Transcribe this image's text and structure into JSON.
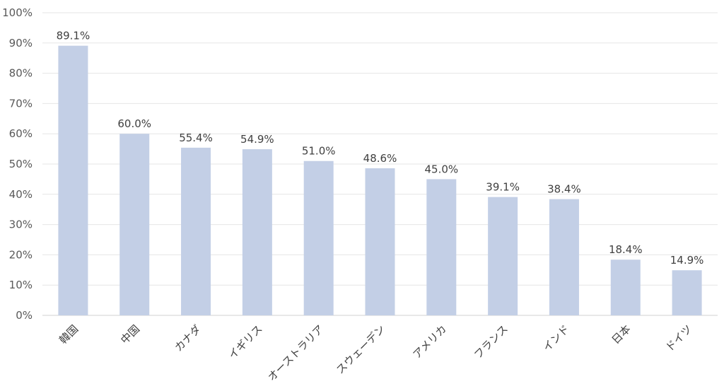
{
  "chart_data": {
    "type": "bar",
    "categories": [
      "韓国",
      "中国",
      "カナダ",
      "イギリス",
      "オーストラリア",
      "スウェーデン",
      "アメリカ",
      "フランス",
      "インド",
      "日本",
      "ドイツ"
    ],
    "values": [
      89.1,
      60.0,
      55.4,
      54.9,
      51.0,
      48.6,
      45.0,
      39.1,
      38.4,
      18.4,
      14.9
    ],
    "data_labels": [
      "89.1%",
      "60.0%",
      "55.4%",
      "54.9%",
      "51.0%",
      "48.6%",
      "45.0%",
      "39.1%",
      "38.4%",
      "18.4%",
      "14.9%"
    ],
    "ylim": [
      0,
      100
    ],
    "yticks": [
      0,
      10,
      20,
      30,
      40,
      50,
      60,
      70,
      80,
      90,
      100
    ],
    "ytick_labels": [
      "0%",
      "10%",
      "20%",
      "30%",
      "40%",
      "50%",
      "60%",
      "70%",
      "80%",
      "90%",
      "100%"
    ],
    "bar_color": "#c3cfe6",
    "grid": true,
    "legend": false
  }
}
